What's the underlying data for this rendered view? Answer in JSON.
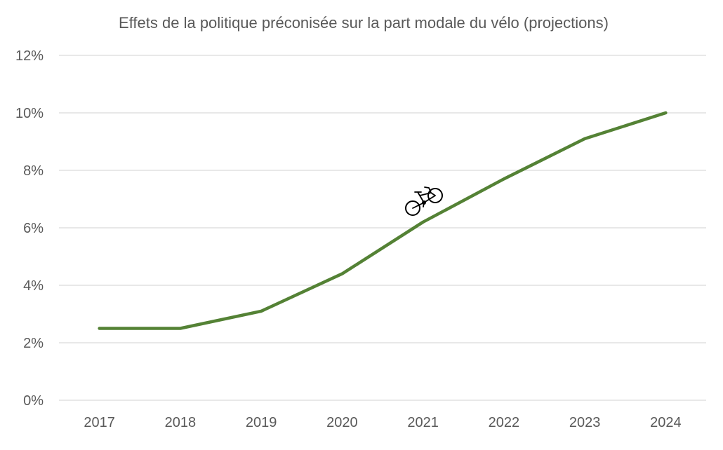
{
  "chart_data": {
    "type": "line",
    "title": "Effets de la politique préconisée sur la part modale du vélo (projections)",
    "xlabel": "",
    "ylabel": "",
    "categories": [
      "2017",
      "2018",
      "2019",
      "2020",
      "2021",
      "2022",
      "2023",
      "2024"
    ],
    "series": [
      {
        "values": [
          2.5,
          2.5,
          3.1,
          4.4,
          6.2,
          7.7,
          9.1,
          10.0
        ],
        "color": "#548235"
      }
    ],
    "ylim": [
      0,
      12
    ],
    "yticks": [
      "0%",
      "2%",
      "4%",
      "6%",
      "8%",
      "10%",
      "12%"
    ],
    "ytick_values": [
      0,
      2,
      4,
      6,
      8,
      10,
      12
    ],
    "grid": true,
    "legend": "none",
    "annotation_icon": "bicycle-icon",
    "gridline_color": "#d9d9d9",
    "text_color": "#595959"
  }
}
